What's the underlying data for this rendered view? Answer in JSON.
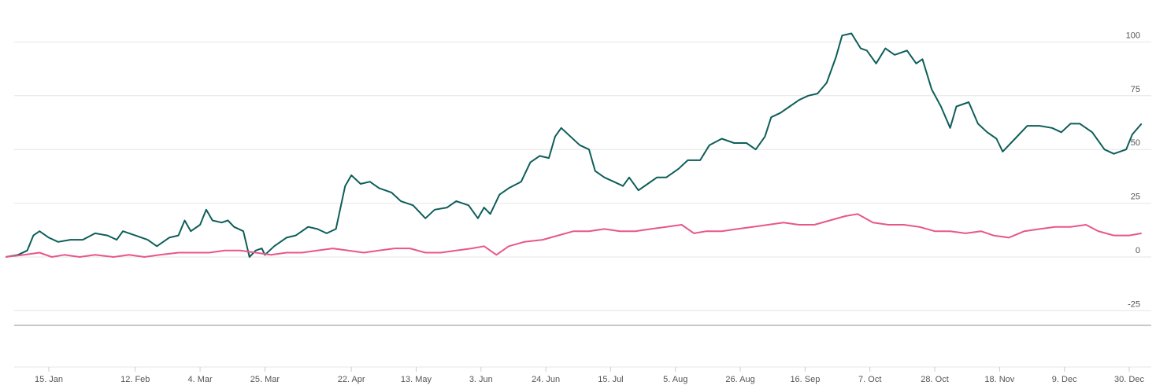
{
  "chart_data": {
    "type": "line",
    "y_ticks": [
      100,
      75,
      50,
      25,
      0,
      -25
    ],
    "ylim": [
      -25,
      106
    ],
    "x_ticks": [
      "15. Jan",
      "12. Feb",
      "4. Mar",
      "25. Mar",
      "22. Apr",
      "13. May",
      "3. Jun",
      "24. Jun",
      "15. Jul",
      "5. Aug",
      "26. Aug",
      "16. Sep",
      "7. Oct",
      "28. Oct",
      "18. Nov",
      "9. Dec",
      "30. Dec"
    ],
    "grid": true,
    "legend": "none",
    "series": [
      {
        "color": "#0d5e5a",
        "points": [
          [
            "Jan 01",
            0
          ],
          [
            "Jan 05",
            1
          ],
          [
            "Jan 08",
            3
          ],
          [
            "Jan 10",
            10
          ],
          [
            "Jan 12",
            12
          ],
          [
            "Jan 15",
            9
          ],
          [
            "Jan 18",
            7
          ],
          [
            "Jan 22",
            8
          ],
          [
            "Jan 26",
            8
          ],
          [
            "Jan 30",
            11
          ],
          [
            "Feb 03",
            10
          ],
          [
            "Feb 06",
            8
          ],
          [
            "Feb 08",
            12
          ],
          [
            "Feb 12",
            10
          ],
          [
            "Feb 16",
            8
          ],
          [
            "Feb 19",
            5
          ],
          [
            "Feb 23",
            9
          ],
          [
            "Feb 26",
            10
          ],
          [
            "Feb 28",
            17
          ],
          [
            "Mar 01",
            12
          ],
          [
            "Mar 04",
            15
          ],
          [
            "Mar 06",
            22
          ],
          [
            "Mar 08",
            17
          ],
          [
            "Mar 11",
            16
          ],
          [
            "Mar 13",
            17
          ],
          [
            "Mar 15",
            14
          ],
          [
            "Mar 18",
            12
          ],
          [
            "Mar 20",
            0
          ],
          [
            "Mar 22",
            3
          ],
          [
            "Mar 24",
            4
          ],
          [
            "Mar 25",
            1
          ],
          [
            "Mar 28",
            5
          ],
          [
            "Apr 01",
            9
          ],
          [
            "Apr 04",
            10
          ],
          [
            "Apr 08",
            14
          ],
          [
            "Apr 11",
            13
          ],
          [
            "Apr 14",
            11
          ],
          [
            "Apr 17",
            13
          ],
          [
            "Apr 20",
            33
          ],
          [
            "Apr 22",
            38
          ],
          [
            "Apr 25",
            34
          ],
          [
            "Apr 28",
            35
          ],
          [
            "May 01",
            32
          ],
          [
            "May 05",
            30
          ],
          [
            "May 08",
            26
          ],
          [
            "May 12",
            24
          ],
          [
            "May 16",
            18
          ],
          [
            "May 19",
            22
          ],
          [
            "May 23",
            23
          ],
          [
            "May 26",
            26
          ],
          [
            "May 30",
            24
          ],
          [
            "Jun 02",
            18
          ],
          [
            "Jun 04",
            23
          ],
          [
            "Jun 06",
            20
          ],
          [
            "Jun 09",
            29
          ],
          [
            "Jun 12",
            32
          ],
          [
            "Jun 16",
            35
          ],
          [
            "Jun 19",
            44
          ],
          [
            "Jun 22",
            47
          ],
          [
            "Jun 25",
            46
          ],
          [
            "Jun 27",
            56
          ],
          [
            "Jun 29",
            60
          ],
          [
            "Jul 02",
            56
          ],
          [
            "Jul 05",
            52
          ],
          [
            "Jul 08",
            50
          ],
          [
            "Jul 10",
            40
          ],
          [
            "Jul 13",
            37
          ],
          [
            "Jul 16",
            35
          ],
          [
            "Jul 19",
            33
          ],
          [
            "Jul 21",
            37
          ],
          [
            "Jul 24",
            31
          ],
          [
            "Jul 27",
            34
          ],
          [
            "Jul 30",
            37
          ],
          [
            "Aug 02",
            37
          ],
          [
            "Aug 06",
            41
          ],
          [
            "Aug 09",
            45
          ],
          [
            "Aug 13",
            45
          ],
          [
            "Aug 16",
            52
          ],
          [
            "Aug 20",
            55
          ],
          [
            "Aug 24",
            53
          ],
          [
            "Aug 28",
            53
          ],
          [
            "Aug 31",
            50
          ],
          [
            "Sep 03",
            56
          ],
          [
            "Sep 05",
            65
          ],
          [
            "Sep 08",
            67
          ],
          [
            "Sep 11",
            70
          ],
          [
            "Sep 14",
            73
          ],
          [
            "Sep 17",
            75
          ],
          [
            "Sep 20",
            76
          ],
          [
            "Sep 23",
            81
          ],
          [
            "Sep 26",
            93
          ],
          [
            "Sep 28",
            103
          ],
          [
            "Oct 01",
            104
          ],
          [
            "Oct 04",
            97
          ],
          [
            "Oct 06",
            96
          ],
          [
            "Oct 09",
            90
          ],
          [
            "Oct 12",
            97
          ],
          [
            "Oct 15",
            94
          ],
          [
            "Oct 19",
            96
          ],
          [
            "Oct 22",
            90
          ],
          [
            "Oct 24",
            92
          ],
          [
            "Oct 27",
            78
          ],
          [
            "Oct 30",
            70
          ],
          [
            "Nov 02",
            60
          ],
          [
            "Nov 04",
            70
          ],
          [
            "Nov 08",
            72
          ],
          [
            "Nov 11",
            62
          ],
          [
            "Nov 14",
            58
          ],
          [
            "Nov 17",
            55
          ],
          [
            "Nov 19",
            49
          ],
          [
            "Nov 23",
            55
          ],
          [
            "Nov 27",
            61
          ],
          [
            "Dec 01",
            61
          ],
          [
            "Dec 05",
            60
          ],
          [
            "Dec 08",
            58
          ],
          [
            "Dec 11",
            62
          ],
          [
            "Dec 14",
            62
          ],
          [
            "Dec 18",
            58
          ],
          [
            "Dec 22",
            50
          ],
          [
            "Dec 25",
            48
          ],
          [
            "Dec 29",
            50
          ],
          [
            "Dec 31",
            57
          ],
          [
            "Jan 03",
            62
          ]
        ]
      },
      {
        "color": "#e8568c",
        "points": [
          [
            "Jan 01",
            0
          ],
          [
            "Jan 07",
            1
          ],
          [
            "Jan 12",
            2
          ],
          [
            "Jan 16",
            0
          ],
          [
            "Jan 20",
            1
          ],
          [
            "Jan 25",
            0
          ],
          [
            "Jan 30",
            1
          ],
          [
            "Feb 05",
            0
          ],
          [
            "Feb 10",
            1
          ],
          [
            "Feb 15",
            0
          ],
          [
            "Feb 20",
            1
          ],
          [
            "Feb 26",
            2
          ],
          [
            "Mar 02",
            2
          ],
          [
            "Mar 07",
            2
          ],
          [
            "Mar 12",
            3
          ],
          [
            "Mar 17",
            3
          ],
          [
            "Mar 22",
            2
          ],
          [
            "Mar 27",
            1
          ],
          [
            "Apr 01",
            2
          ],
          [
            "Apr 06",
            2
          ],
          [
            "Apr 11",
            3
          ],
          [
            "Apr 16",
            4
          ],
          [
            "Apr 21",
            3
          ],
          [
            "Apr 26",
            2
          ],
          [
            "May 01",
            3
          ],
          [
            "May 06",
            4
          ],
          [
            "May 11",
            4
          ],
          [
            "May 16",
            2
          ],
          [
            "May 21",
            2
          ],
          [
            "May 26",
            3
          ],
          [
            "May 31",
            4
          ],
          [
            "Jun 04",
            5
          ],
          [
            "Jun 08",
            1
          ],
          [
            "Jun 12",
            5
          ],
          [
            "Jun 17",
            7
          ],
          [
            "Jun 23",
            8
          ],
          [
            "Jun 28",
            10
          ],
          [
            "Jul 03",
            12
          ],
          [
            "Jul 08",
            12
          ],
          [
            "Jul 13",
            13
          ],
          [
            "Jul 18",
            12
          ],
          [
            "Jul 23",
            12
          ],
          [
            "Jul 28",
            13
          ],
          [
            "Aug 02",
            14
          ],
          [
            "Aug 07",
            15
          ],
          [
            "Aug 11",
            11
          ],
          [
            "Aug 15",
            12
          ],
          [
            "Aug 20",
            12
          ],
          [
            "Aug 25",
            13
          ],
          [
            "Aug 30",
            14
          ],
          [
            "Sep 04",
            15
          ],
          [
            "Sep 09",
            16
          ],
          [
            "Sep 14",
            15
          ],
          [
            "Sep 19",
            15
          ],
          [
            "Sep 24",
            17
          ],
          [
            "Sep 29",
            19
          ],
          [
            "Oct 03",
            20
          ],
          [
            "Oct 08",
            16
          ],
          [
            "Oct 13",
            15
          ],
          [
            "Oct 18",
            15
          ],
          [
            "Oct 23",
            14
          ],
          [
            "Oct 28",
            12
          ],
          [
            "Nov 02",
            12
          ],
          [
            "Nov 07",
            11
          ],
          [
            "Nov 12",
            12
          ],
          [
            "Nov 16",
            10
          ],
          [
            "Nov 21",
            9
          ],
          [
            "Nov 26",
            12
          ],
          [
            "Dec 01",
            13
          ],
          [
            "Dec 06",
            14
          ],
          [
            "Dec 11",
            14
          ],
          [
            "Dec 16",
            15
          ],
          [
            "Dec 20",
            12
          ],
          [
            "Dec 25",
            10
          ],
          [
            "Dec 30",
            10
          ],
          [
            "Jan 03",
            11
          ]
        ]
      }
    ]
  }
}
